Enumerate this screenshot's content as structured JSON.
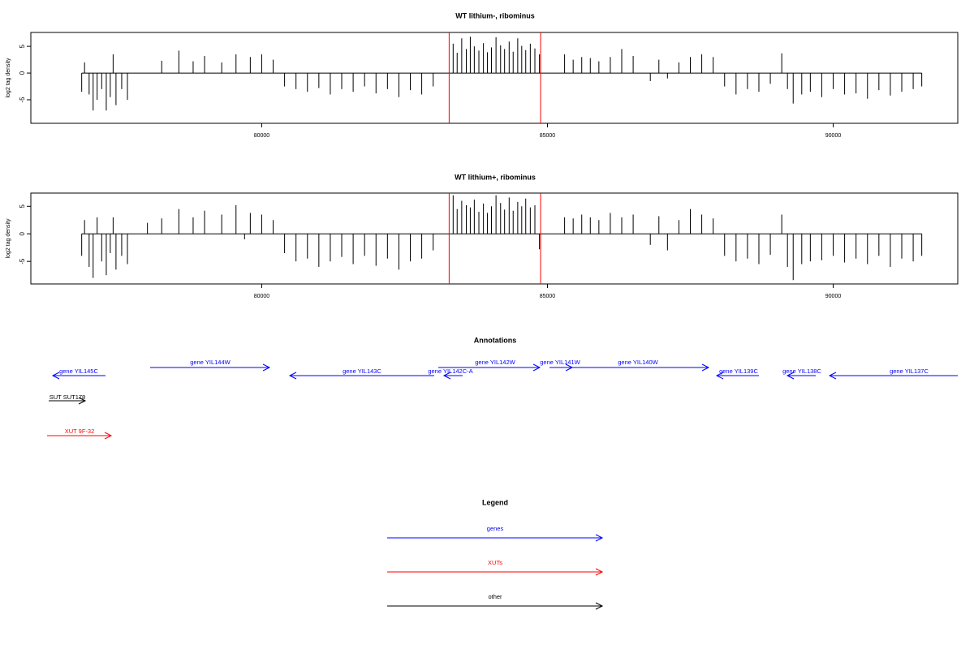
{
  "chart_data": [
    {
      "type": "bar",
      "title": "WT lithium-, ribominus",
      "y_label": "log2 tag density",
      "color": "#000000",
      "highlight_x": [
        83280,
        84880
      ],
      "highlight_color": "#ff0000",
      "xlim": [
        75960,
        92180
      ],
      "ylim": [
        -9.4,
        7.6
      ],
      "xticks": [
        80000,
        85000,
        90000
      ],
      "yticks": [
        -5,
        0,
        5
      ],
      "x": [
        76850,
        76900,
        76980,
        77050,
        77120,
        77200,
        77280,
        77350,
        77400,
        77450,
        77550,
        77650,
        78250,
        78550,
        78800,
        79000,
        79300,
        79550,
        79800,
        80000,
        80200,
        80400,
        80600,
        80800,
        81000,
        81200,
        81400,
        81600,
        81800,
        82000,
        82200,
        82400,
        82600,
        82800,
        83000,
        83350,
        83420,
        83500,
        83580,
        83650,
        83720,
        83800,
        83880,
        83950,
        84020,
        84100,
        84180,
        84250,
        84330,
        84400,
        84480,
        84550,
        84620,
        84700,
        84780,
        84860,
        85300,
        85450,
        85600,
        85750,
        85900,
        86100,
        86300,
        86500,
        86800,
        86950,
        87100,
        87300,
        87500,
        87700,
        87900,
        88100,
        88300,
        88500,
        88700,
        88900,
        89100,
        89200,
        89300,
        89450,
        89600,
        89800,
        90000,
        90200,
        90400,
        90600,
        90800,
        91000,
        91200,
        91400,
        91550
      ],
      "values": [
        -3.5,
        2,
        -4,
        -7,
        -5,
        -3,
        -7,
        -4.5,
        3.5,
        -6,
        -3,
        -5,
        2.3,
        4.2,
        2.2,
        3.2,
        2,
        3.5,
        3,
        3.5,
        2.5,
        -2.5,
        -3,
        -3.5,
        -2.8,
        -4,
        -3,
        -3.5,
        -2.5,
        -3.8,
        -3,
        -4.5,
        -3.2,
        -4,
        -2.5,
        5.5,
        3.8,
        6.5,
        4.5,
        6.8,
        5,
        4.2,
        5.6,
        3.9,
        4.8,
        6.7,
        5.2,
        4.5,
        5.9,
        4,
        6.5,
        5.1,
        4.3,
        5.5,
        4.6,
        3.5,
        3.5,
        2.5,
        3,
        2.8,
        2.2,
        3,
        4.5,
        3.2,
        -1.5,
        2.5,
        -1,
        2,
        3,
        3.5,
        3,
        -2.5,
        -4,
        -3,
        -3.5,
        -2,
        3.7,
        -3,
        -5.7,
        -4,
        -3.5,
        -4.5,
        -3,
        -4,
        -3.8,
        -4.8,
        -3.2,
        -4.2,
        -3.5,
        -3,
        -2.5
      ]
    },
    {
      "type": "bar",
      "title": "WT lithium+, ribominus",
      "y_label": "log2 tag density",
      "color": "#000000",
      "highlight_x": [
        83280,
        84880
      ],
      "highlight_color": "#ff0000",
      "xlim": [
        75960,
        92180
      ],
      "ylim": [
        -9.1,
        7.4
      ],
      "xticks": [
        80000,
        85000,
        90000
      ],
      "yticks": [
        -5,
        0,
        5
      ],
      "x": [
        76850,
        76900,
        76980,
        77050,
        77120,
        77200,
        77280,
        77350,
        77400,
        77450,
        77550,
        77650,
        78000,
        78250,
        78550,
        78800,
        79000,
        79300,
        79550,
        79700,
        79800,
        80000,
        80200,
        80400,
        80600,
        80800,
        81000,
        81200,
        81400,
        81600,
        81800,
        82000,
        82200,
        82400,
        82600,
        82800,
        83000,
        83350,
        83420,
        83500,
        83580,
        83650,
        83720,
        83800,
        83880,
        83950,
        84020,
        84100,
        84180,
        84250,
        84330,
        84400,
        84480,
        84550,
        84620,
        84700,
        84780,
        84860,
        85300,
        85450,
        85600,
        85750,
        85900,
        86100,
        86300,
        86500,
        86800,
        86950,
        87100,
        87300,
        87500,
        87700,
        87900,
        88100,
        88300,
        88500,
        88700,
        88900,
        89100,
        89200,
        89300,
        89450,
        89600,
        89800,
        90000,
        90200,
        90400,
        90600,
        90800,
        91000,
        91200,
        91400,
        91550
      ],
      "values": [
        -4,
        2.5,
        -6,
        -8,
        3,
        -5,
        -7.5,
        -3.5,
        3,
        -6.5,
        -4,
        -5.5,
        2,
        2.8,
        4.5,
        3,
        4.2,
        3.5,
        5.2,
        -1,
        3.8,
        3.5,
        2.5,
        -3.5,
        -5,
        -4.5,
        -6,
        -5,
        -4.2,
        -5.5,
        -4,
        -5.8,
        -4.5,
        -6.5,
        -5,
        -4.5,
        -3,
        7,
        4.5,
        6,
        5.2,
        4.8,
        6.2,
        4,
        5.5,
        3.8,
        5,
        7,
        5.6,
        4.4,
        6.6,
        4.2,
        5.8,
        5,
        6.4,
        4.8,
        5.2,
        -2.8,
        3,
        2.8,
        3.5,
        3,
        2.5,
        3.8,
        3,
        3.5,
        -2,
        3.2,
        -3,
        2.5,
        4.5,
        3.5,
        2.8,
        -4,
        -5,
        -4.5,
        -5.5,
        -3.8,
        3.5,
        -6,
        -8.4,
        -5.5,
        -5,
        -4.8,
        -4,
        -5.2,
        -4.5,
        -5.5,
        -4,
        -6,
        -4.5,
        -5,
        -4
      ]
    }
  ],
  "annotations": {
    "title": "Annotations",
    "items": [
      {
        "label": "gene YIL145C",
        "color": "#0000ff"
      },
      {
        "label": "gene YIL144W",
        "color": "#0000ff"
      },
      {
        "label": "gene YIL143C",
        "color": "#0000ff"
      },
      {
        "label": "gene YIL142C-A",
        "color": "#0000ff"
      },
      {
        "label": "gene YIL142W",
        "color": "#0000ff"
      },
      {
        "label": "gene YIL141W",
        "color": "#0000ff"
      },
      {
        "label": "gene YIL140W",
        "color": "#0000ff"
      },
      {
        "label": "gene YIL139C",
        "color": "#0000ff"
      },
      {
        "label": "gene YIL138C",
        "color": "#0000ff"
      },
      {
        "label": "gene YIL137C",
        "color": "#0000ff"
      },
      {
        "label": "SUT SUT178",
        "color": "#000000"
      },
      {
        "label": "XUT 9F-32",
        "color": "#ff0000"
      }
    ]
  },
  "legend": {
    "title": "Legend",
    "items": [
      {
        "label": "genes",
        "color": "#0000ff"
      },
      {
        "label": "XUTs",
        "color": "#ff0000"
      },
      {
        "label": "other",
        "color": "#000000"
      }
    ]
  }
}
